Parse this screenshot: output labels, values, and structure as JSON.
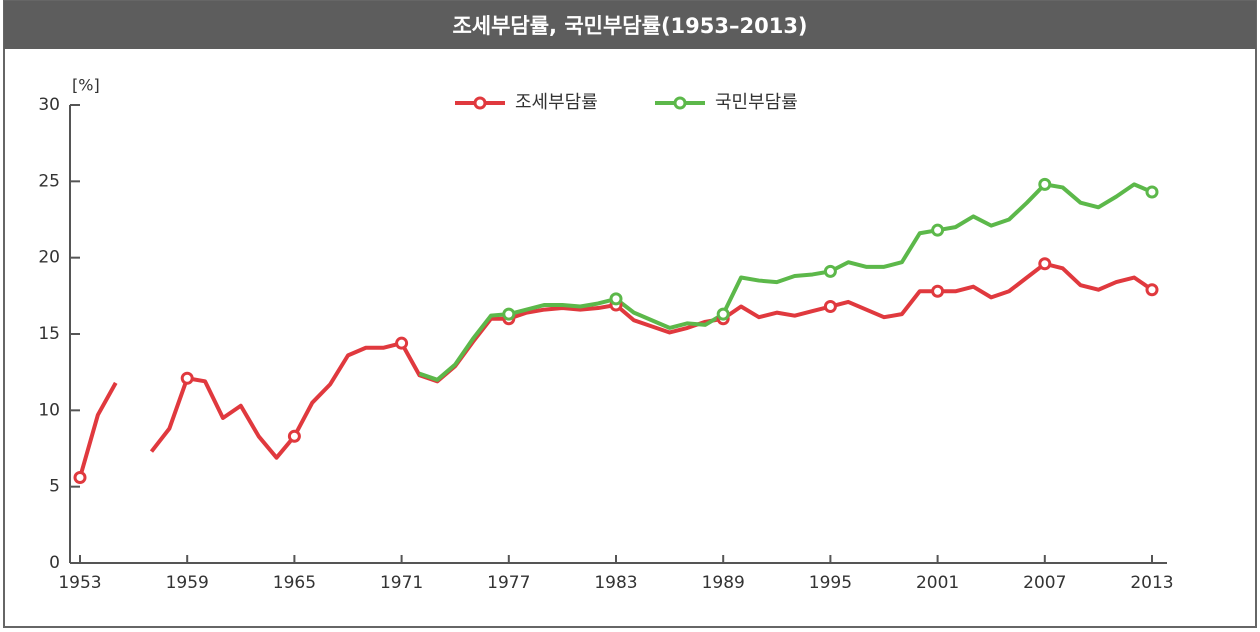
{
  "chart_data": {
    "type": "line",
    "title": "조세부담률, 국민부담률(1953–2013)",
    "y_label": "[%]",
    "x": [
      1953,
      1954,
      1955,
      1956,
      1957,
      1958,
      1959,
      1960,
      1961,
      1962,
      1963,
      1964,
      1965,
      1966,
      1967,
      1968,
      1969,
      1970,
      1971,
      1972,
      1973,
      1974,
      1975,
      1976,
      1977,
      1978,
      1979,
      1980,
      1981,
      1982,
      1983,
      1984,
      1985,
      1986,
      1987,
      1988,
      1989,
      1990,
      1991,
      1992,
      1993,
      1994,
      1995,
      1996,
      1997,
      1998,
      1999,
      2000,
      2001,
      2002,
      2003,
      2004,
      2005,
      2006,
      2007,
      2008,
      2009,
      2010,
      2011,
      2012,
      2013
    ],
    "series": [
      {
        "name": "조세부담률",
        "color": "#e0393e",
        "values": [
          5.6,
          9.7,
          11.8,
          null,
          7.3,
          8.8,
          12.1,
          11.9,
          9.5,
          10.3,
          8.3,
          6.9,
          8.3,
          10.5,
          11.7,
          13.6,
          14.1,
          14.1,
          14.4,
          12.3,
          11.9,
          12.9,
          14.5,
          16.0,
          16.0,
          16.4,
          16.6,
          16.7,
          16.6,
          16.7,
          16.9,
          15.9,
          15.5,
          15.1,
          15.4,
          15.8,
          16.0,
          16.8,
          16.1,
          16.4,
          16.2,
          16.5,
          16.8,
          17.1,
          16.6,
          16.1,
          16.3,
          17.8,
          17.8,
          17.8,
          18.1,
          17.4,
          17.8,
          18.7,
          19.6,
          19.3,
          18.2,
          17.9,
          18.4,
          18.7,
          17.9
        ]
      },
      {
        "name": "국민부담률",
        "color": "#5cb84a",
        "values": [
          null,
          null,
          null,
          null,
          null,
          null,
          null,
          null,
          null,
          null,
          null,
          null,
          null,
          null,
          null,
          null,
          null,
          null,
          null,
          12.4,
          12.0,
          13.0,
          14.7,
          16.2,
          16.3,
          16.6,
          16.9,
          16.9,
          16.8,
          17.0,
          17.3,
          16.4,
          15.9,
          15.4,
          15.7,
          15.6,
          16.3,
          18.7,
          18.5,
          18.4,
          18.8,
          18.9,
          19.1,
          19.7,
          19.4,
          19.4,
          19.7,
          21.6,
          21.8,
          22.0,
          22.7,
          22.1,
          22.5,
          23.6,
          24.8,
          24.6,
          23.6,
          23.3,
          24.0,
          24.8,
          24.3
        ]
      }
    ],
    "xlim": [
      1953,
      2013
    ],
    "xticks": [
      1953,
      1959,
      1965,
      1971,
      1977,
      1983,
      1989,
      1995,
      2001,
      2007,
      2013
    ],
    "ylim": [
      0,
      30
    ],
    "yticks": [
      0,
      5,
      10,
      15,
      20,
      25,
      30
    ]
  }
}
